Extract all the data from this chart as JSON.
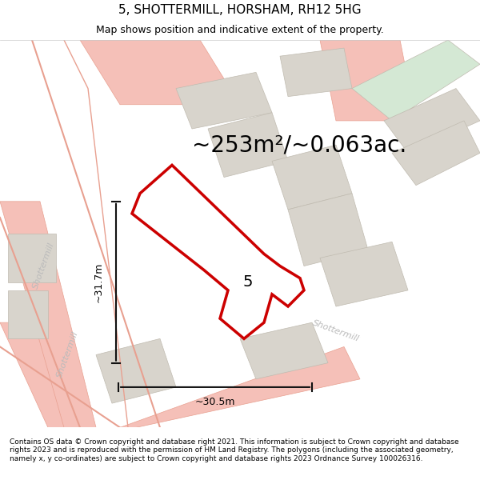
{
  "title": "5, SHOTTERMILL, HORSHAM, RH12 5HG",
  "subtitle": "Map shows position and indicative extent of the property.",
  "area_label": "~253m²/~0.063ac.",
  "property_number": "5",
  "dim_height": "~31.7m",
  "dim_width": "~30.5m",
  "footer": "Contains OS data © Crown copyright and database right 2021. This information is subject to Crown copyright and database rights 2023 and is reproduced with the permission of HM Land Registry. The polygons (including the associated geometry, namely x, y co-ordinates) are subject to Crown copyright and database rights 2023 Ordnance Survey 100026316.",
  "bg_color": "#f0eeeb",
  "map_bg": "#f0eeeb",
  "title_fontsize": 11,
  "subtitle_fontsize": 9,
  "area_fontsize": 20,
  "property_num_fontsize": 14,
  "road_color_light": "#f5c0b8",
  "road_color_dark": "#e8a090",
  "building_color": "#d8d4cc",
  "building_edge": "#c0bbb0",
  "highlight_color": "#cc0000",
  "green_patch": "#d4e8d4",
  "dim_line_color": "#111111",
  "road_label_color": "#aaaaaa",
  "footer_fontsize": 6.5
}
